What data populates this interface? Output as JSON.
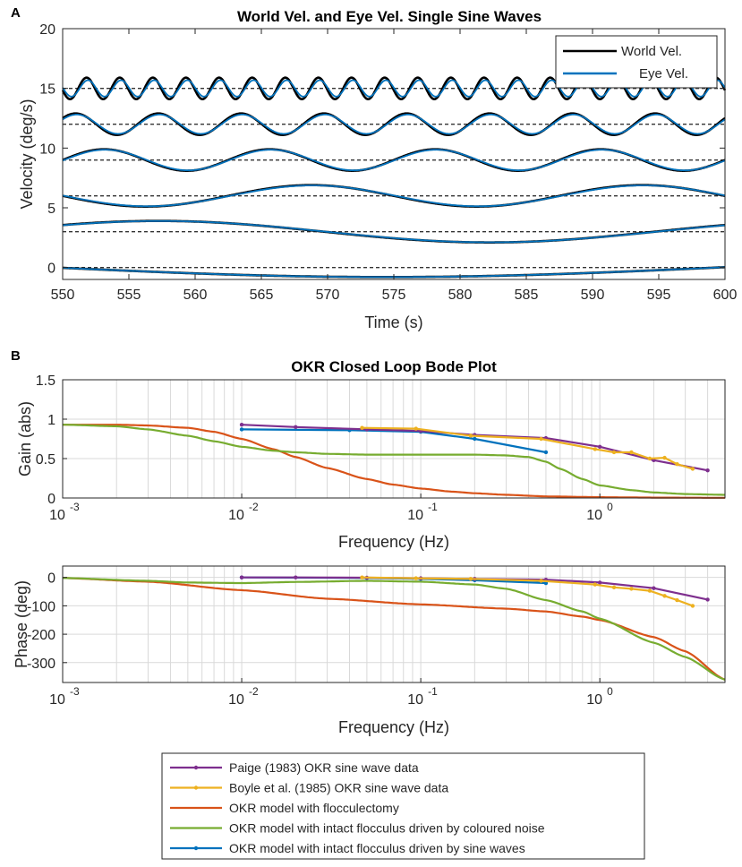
{
  "panel_labels": [
    "A",
    "B"
  ],
  "legend_A": [
    "World Vel.",
    "Eye Vel."
  ],
  "legend_B": [
    "Paige (1983) OKR sine wave data",
    "Boyle et al. (1985) OKR sine wave data",
    "OKR model with flocculectomy",
    "OKR model with intact flocculus driven by coloured noise",
    "OKR model with intact flocculus driven by sine waves"
  ],
  "colors": {
    "world": "#000000",
    "eye": "#0072BD",
    "paige": "#7E2F8E",
    "boyle": "#EDB120",
    "floccx": "#D95319",
    "noise": "#77AC30",
    "sine": "#0072BD",
    "grid": "#d9d9d9",
    "axis": "#262626"
  },
  "chart_data": [
    {
      "type": "line",
      "title": "World Vel. and Eye Vel. Single Sine Waves",
      "xlabel": "Time (s)",
      "ylabel": "Velocity (deg/s)",
      "xlim": [
        550,
        600
      ],
      "ylim": [
        -1,
        20
      ],
      "xticks": [
        550,
        555,
        560,
        565,
        570,
        575,
        580,
        585,
        590,
        595,
        600
      ],
      "yticks": [
        0,
        5,
        10,
        15,
        20
      ],
      "grid": false,
      "legend": "top-right",
      "offsets": [
        0,
        3,
        6,
        9,
        12,
        15
      ],
      "periods_s": [
        100,
        50,
        25,
        12.5,
        6.25,
        2.5
      ],
      "amplitude": [
        0.8,
        0.9,
        0.9,
        0.9,
        0.9,
        0.9
      ],
      "phase_at_550_deg": [
        182,
        38,
        180,
        0,
        34,
        190
      ],
      "eye_gain": [
        1.0,
        0.99,
        0.97,
        0.96,
        0.9,
        0.76
      ],
      "eye_phase_lag_deg": [
        0,
        1,
        2,
        3,
        5,
        15
      ],
      "series": [
        {
          "name": "World Vel.",
          "color": "#000000"
        },
        {
          "name": "Eye Vel.",
          "color": "#0072BD"
        }
      ]
    },
    {
      "type": "line",
      "title": "OKR Closed Loop Bode Plot",
      "xlabel": "Frequency (Hz)",
      "ylabel": "Gain (abs)",
      "xscale": "log",
      "xlim": [
        0.001,
        5
      ],
      "ylim": [
        0,
        1.5
      ],
      "xticks": [
        0.001,
        0.01,
        0.1,
        1
      ],
      "xticklabels": [
        "10",
        "10",
        "10",
        "10"
      ],
      "xtickexponents": [
        "-3",
        "-2",
        "-1",
        "0"
      ],
      "yticks": [
        0,
        0.5,
        1,
        1.5
      ],
      "yticklabels": [
        "0",
        "0.5",
        "1",
        "1.5"
      ],
      "grid": true,
      "series": [
        {
          "name": "OKR model with flocculectomy",
          "markers": false,
          "x": [
            0.001,
            0.002,
            0.003,
            0.005,
            0.007,
            0.01,
            0.015,
            0.02,
            0.03,
            0.05,
            0.07,
            0.1,
            0.15,
            0.2,
            0.3,
            0.5,
            1,
            2,
            5
          ],
          "y": [
            0.93,
            0.93,
            0.92,
            0.89,
            0.84,
            0.75,
            0.62,
            0.52,
            0.38,
            0.24,
            0.17,
            0.12,
            0.08,
            0.06,
            0.04,
            0.02,
            0.01,
            0.005,
            0.002
          ]
        },
        {
          "name": "OKR model with intact flocculus driven by coloured noise",
          "markers": false,
          "x": [
            0.001,
            0.002,
            0.003,
            0.005,
            0.007,
            0.01,
            0.015,
            0.02,
            0.03,
            0.05,
            0.1,
            0.2,
            0.3,
            0.4,
            0.5,
            0.6,
            0.8,
            1,
            1.5,
            2,
            3,
            5
          ],
          "y": [
            0.93,
            0.91,
            0.87,
            0.79,
            0.72,
            0.65,
            0.6,
            0.58,
            0.56,
            0.55,
            0.55,
            0.55,
            0.54,
            0.52,
            0.46,
            0.37,
            0.24,
            0.16,
            0.1,
            0.07,
            0.05,
            0.04
          ]
        },
        {
          "name": "OKR model with intact flocculus driven by sine waves",
          "markers": true,
          "x": [
            0.01,
            0.04,
            0.1,
            0.2,
            0.5
          ],
          "y": [
            0.87,
            0.86,
            0.84,
            0.75,
            0.58
          ]
        },
        {
          "name": "Paige (1983) OKR sine wave data",
          "markers": true,
          "x": [
            0.01,
            0.02,
            0.05,
            0.1,
            0.2,
            0.5,
            1,
            2,
            4
          ],
          "y": [
            0.93,
            0.9,
            0.87,
            0.85,
            0.8,
            0.76,
            0.65,
            0.48,
            0.35
          ]
        },
        {
          "name": "Boyle et al. (1985) OKR sine wave data",
          "markers": true,
          "x": [
            0.047,
            0.094,
            0.19,
            0.47,
            0.94,
            1.2,
            1.5,
            1.9,
            2.3,
            2.7,
            3.3
          ],
          "y": [
            0.89,
            0.88,
            0.79,
            0.75,
            0.62,
            0.58,
            0.58,
            0.5,
            0.51,
            0.43,
            0.37
          ]
        }
      ]
    },
    {
      "type": "line",
      "title": "",
      "xlabel": "Frequency (Hz)",
      "ylabel": "Phase (deg)",
      "xscale": "log",
      "xlim": [
        0.001,
        5
      ],
      "ylim": [
        -370,
        40
      ],
      "xticks": [
        0.001,
        0.01,
        0.1,
        1
      ],
      "xticklabels": [
        "10",
        "10",
        "10",
        "10"
      ],
      "xtickexponents": [
        "-3",
        "-2",
        "-1",
        "0"
      ],
      "yticks": [
        0,
        -100,
        -200,
        -300
      ],
      "yticklabels": [
        "0",
        "-100",
        "-200",
        "-300"
      ],
      "grid": true,
      "series": [
        {
          "name": "OKR model with flocculectomy",
          "markers": false,
          "x": [
            0.001,
            0.003,
            0.01,
            0.03,
            0.1,
            0.3,
            0.5,
            0.8,
            1,
            2,
            3,
            5
          ],
          "y": [
            -2,
            -15,
            -45,
            -75,
            -95,
            -110,
            -120,
            -138,
            -150,
            -210,
            -260,
            -360
          ]
        },
        {
          "name": "OKR model with intact flocculus driven by coloured noise",
          "markers": false,
          "x": [
            0.001,
            0.003,
            0.005,
            0.01,
            0.02,
            0.05,
            0.1,
            0.2,
            0.3,
            0.5,
            0.8,
            1,
            2,
            3,
            5
          ],
          "y": [
            -2,
            -12,
            -18,
            -20,
            -16,
            -12,
            -15,
            -25,
            -40,
            -80,
            -120,
            -145,
            -230,
            -280,
            -360
          ]
        },
        {
          "name": "OKR model with intact flocculus driven by sine waves",
          "markers": true,
          "x": [
            0.01,
            0.05,
            0.1,
            0.2,
            0.5
          ],
          "y": [
            0,
            -2,
            -5,
            -10,
            -20
          ]
        },
        {
          "name": "Paige (1983) OKR sine wave data",
          "markers": true,
          "x": [
            0.01,
            0.02,
            0.05,
            0.1,
            0.2,
            0.5,
            1,
            2,
            4
          ],
          "y": [
            0,
            0,
            -1,
            -3,
            -5,
            -8,
            -18,
            -38,
            -78
          ]
        },
        {
          "name": "Boyle et al. (1985) OKR sine wave data",
          "markers": true,
          "x": [
            0.047,
            0.094,
            0.19,
            0.47,
            0.94,
            1.2,
            1.5,
            1.9,
            2.3,
            2.7,
            3.3
          ],
          "y": [
            0,
            -3,
            -5,
            -12,
            -25,
            -35,
            -40,
            -47,
            -65,
            -80,
            -100
          ]
        }
      ]
    }
  ]
}
